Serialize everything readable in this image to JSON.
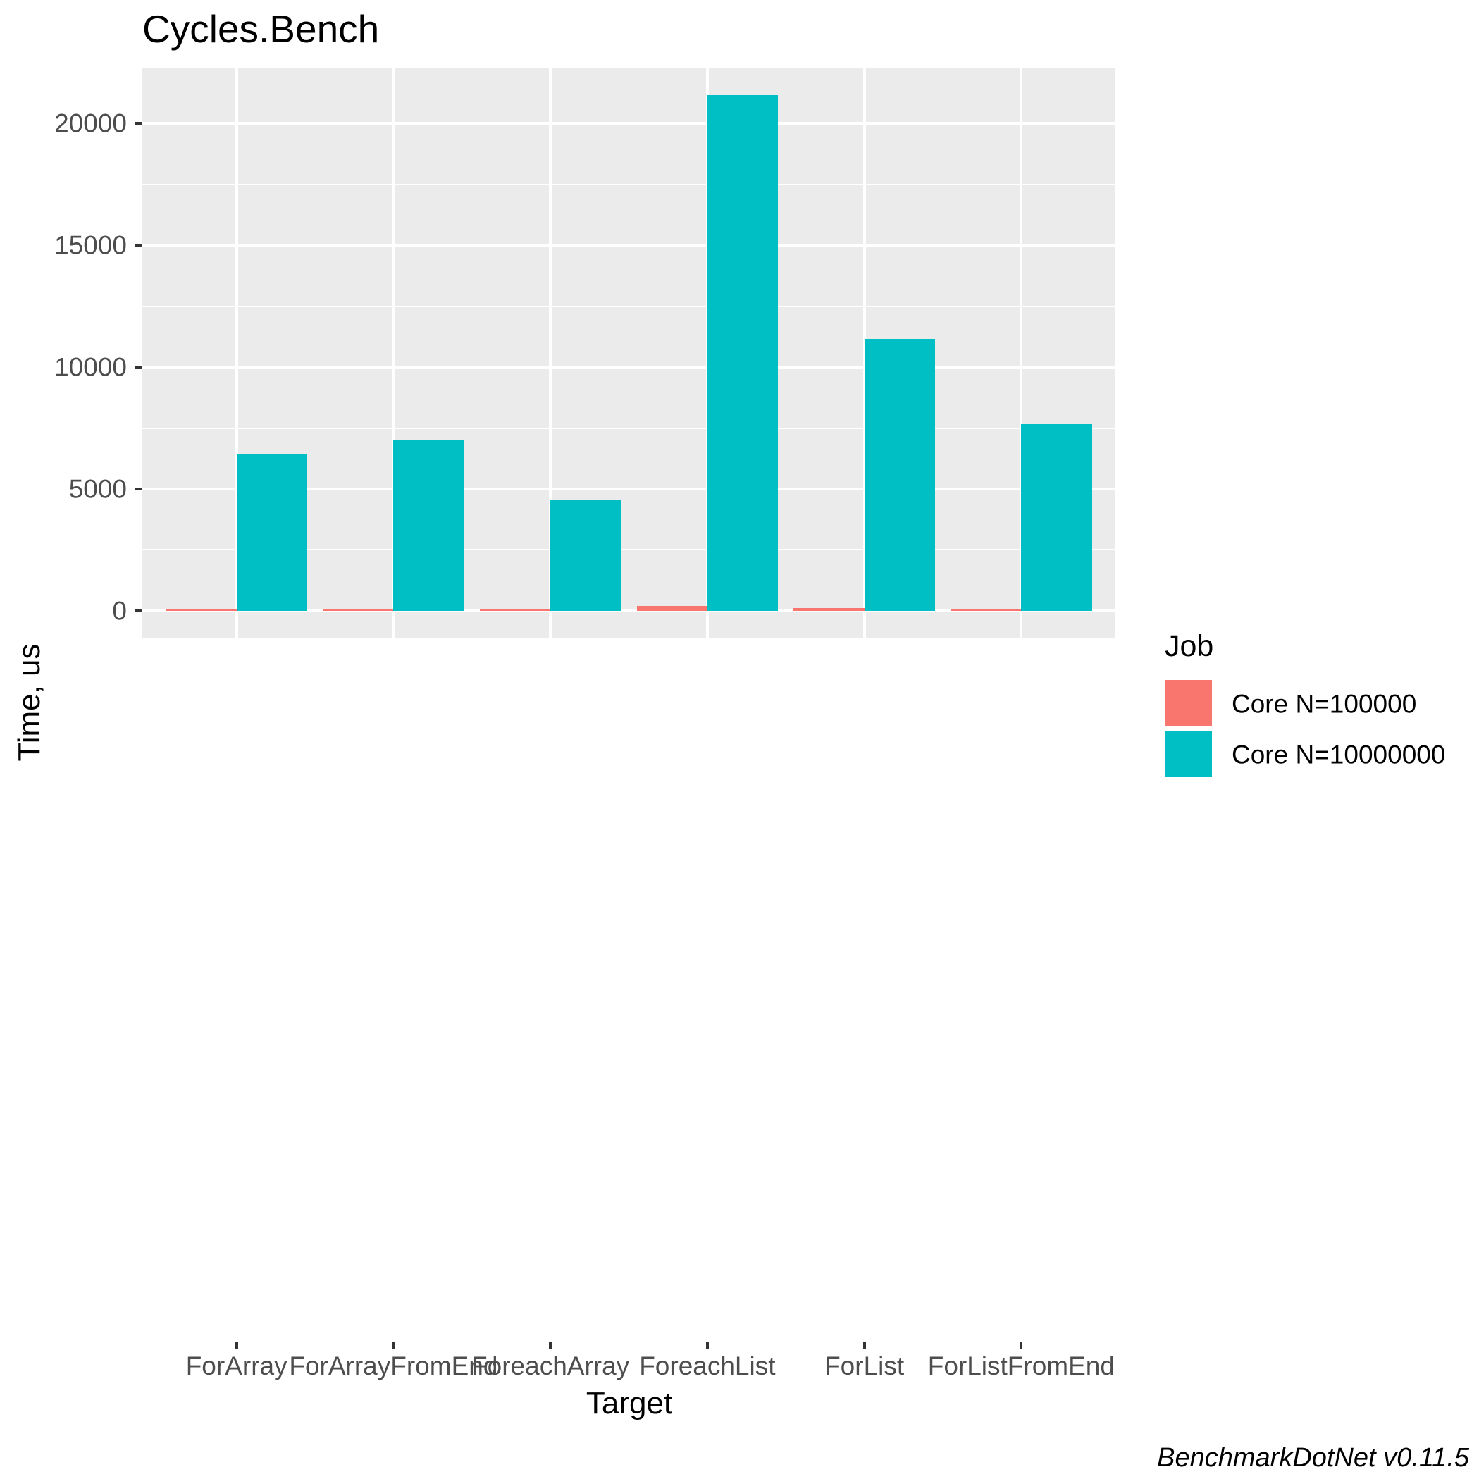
{
  "title": "Cycles.Bench",
  "caption": "BenchmarkDotNet v0.11.5",
  "x_axis": {
    "title": "Target",
    "tick_labels": [
      "ForArray",
      "ForArrayFromEnd",
      "ForeachArray",
      "ForeachList",
      "ForList",
      "ForListFromEnd"
    ]
  },
  "y_axis": {
    "title": "Time, us",
    "tick_labels": [
      "0",
      "5000",
      "10000",
      "15000",
      "20000"
    ]
  },
  "legend": {
    "title": "Job",
    "items": [
      {
        "label": "Core N=100000",
        "color": "#F8766D"
      },
      {
        "label": "Core N=10000000",
        "color": "#00BFC4"
      }
    ]
  },
  "colors": {
    "panel_background": "#ebebeb",
    "grid": "#ffffff",
    "tick_text": "#4d4d4d",
    "series_1": "#F8766D",
    "series_2": "#00BFC4"
  },
  "chart_data": {
    "type": "bar",
    "title": "Cycles.Bench",
    "xlabel": "Target",
    "ylabel": "Time, us",
    "categories": [
      "ForArray",
      "ForArrayFromEnd",
      "ForeachArray",
      "ForeachList",
      "ForList",
      "ForListFromEnd"
    ],
    "series": [
      {
        "name": "Core N=100000",
        "color": "#F8766D",
        "values": [
          64,
          64,
          45,
          215,
          115,
          75
        ]
      },
      {
        "name": "Core N=10000000",
        "color": "#00BFC4",
        "values": [
          6420,
          6990,
          4560,
          21170,
          11160,
          7670
        ]
      }
    ],
    "ylim": [
      -1100,
      22260
    ],
    "yticks": [
      0,
      5000,
      10000,
      15000,
      20000
    ],
    "minor_yticks": [
      2500,
      7500,
      12500,
      17500
    ],
    "grid": true,
    "bar_position": "dodge",
    "legend_position": "right",
    "legend_title": "Job",
    "caption": "BenchmarkDotNet v0.11.5"
  }
}
